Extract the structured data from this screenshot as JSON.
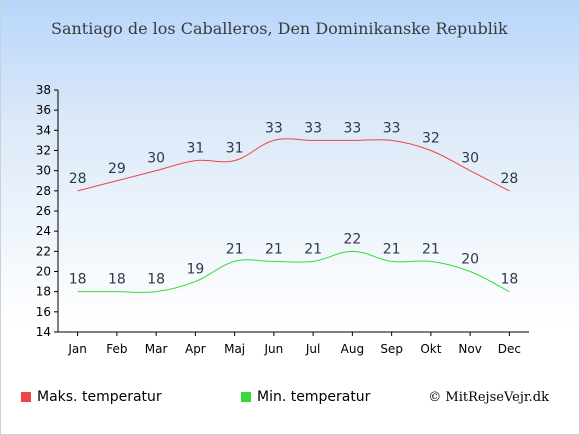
{
  "title": "Santiago de los Caballeros, Den Dominikanske Republik",
  "credit": "© MitRejseVejr.dk",
  "chart_data": {
    "type": "line",
    "categories": [
      "Jan",
      "Feb",
      "Mar",
      "Apr",
      "Maj",
      "Jun",
      "Jul",
      "Aug",
      "Sep",
      "Okt",
      "Nov",
      "Dec"
    ],
    "ylim": [
      14,
      38
    ],
    "yticks": [
      14,
      16,
      18,
      20,
      22,
      24,
      26,
      28,
      30,
      32,
      34,
      36,
      38
    ],
    "grid": false,
    "legend": "bottom",
    "series": [
      {
        "name": "Maks. temperatur",
        "color": "#ee4444",
        "values": [
          28,
          29,
          30,
          31,
          31,
          33,
          33,
          33,
          33,
          32,
          30,
          28
        ]
      },
      {
        "name": "Min. temperatur",
        "color": "#33dd33",
        "values": [
          18,
          18,
          18,
          19,
          21,
          21,
          21,
          22,
          21,
          21,
          20,
          18
        ]
      }
    ]
  }
}
